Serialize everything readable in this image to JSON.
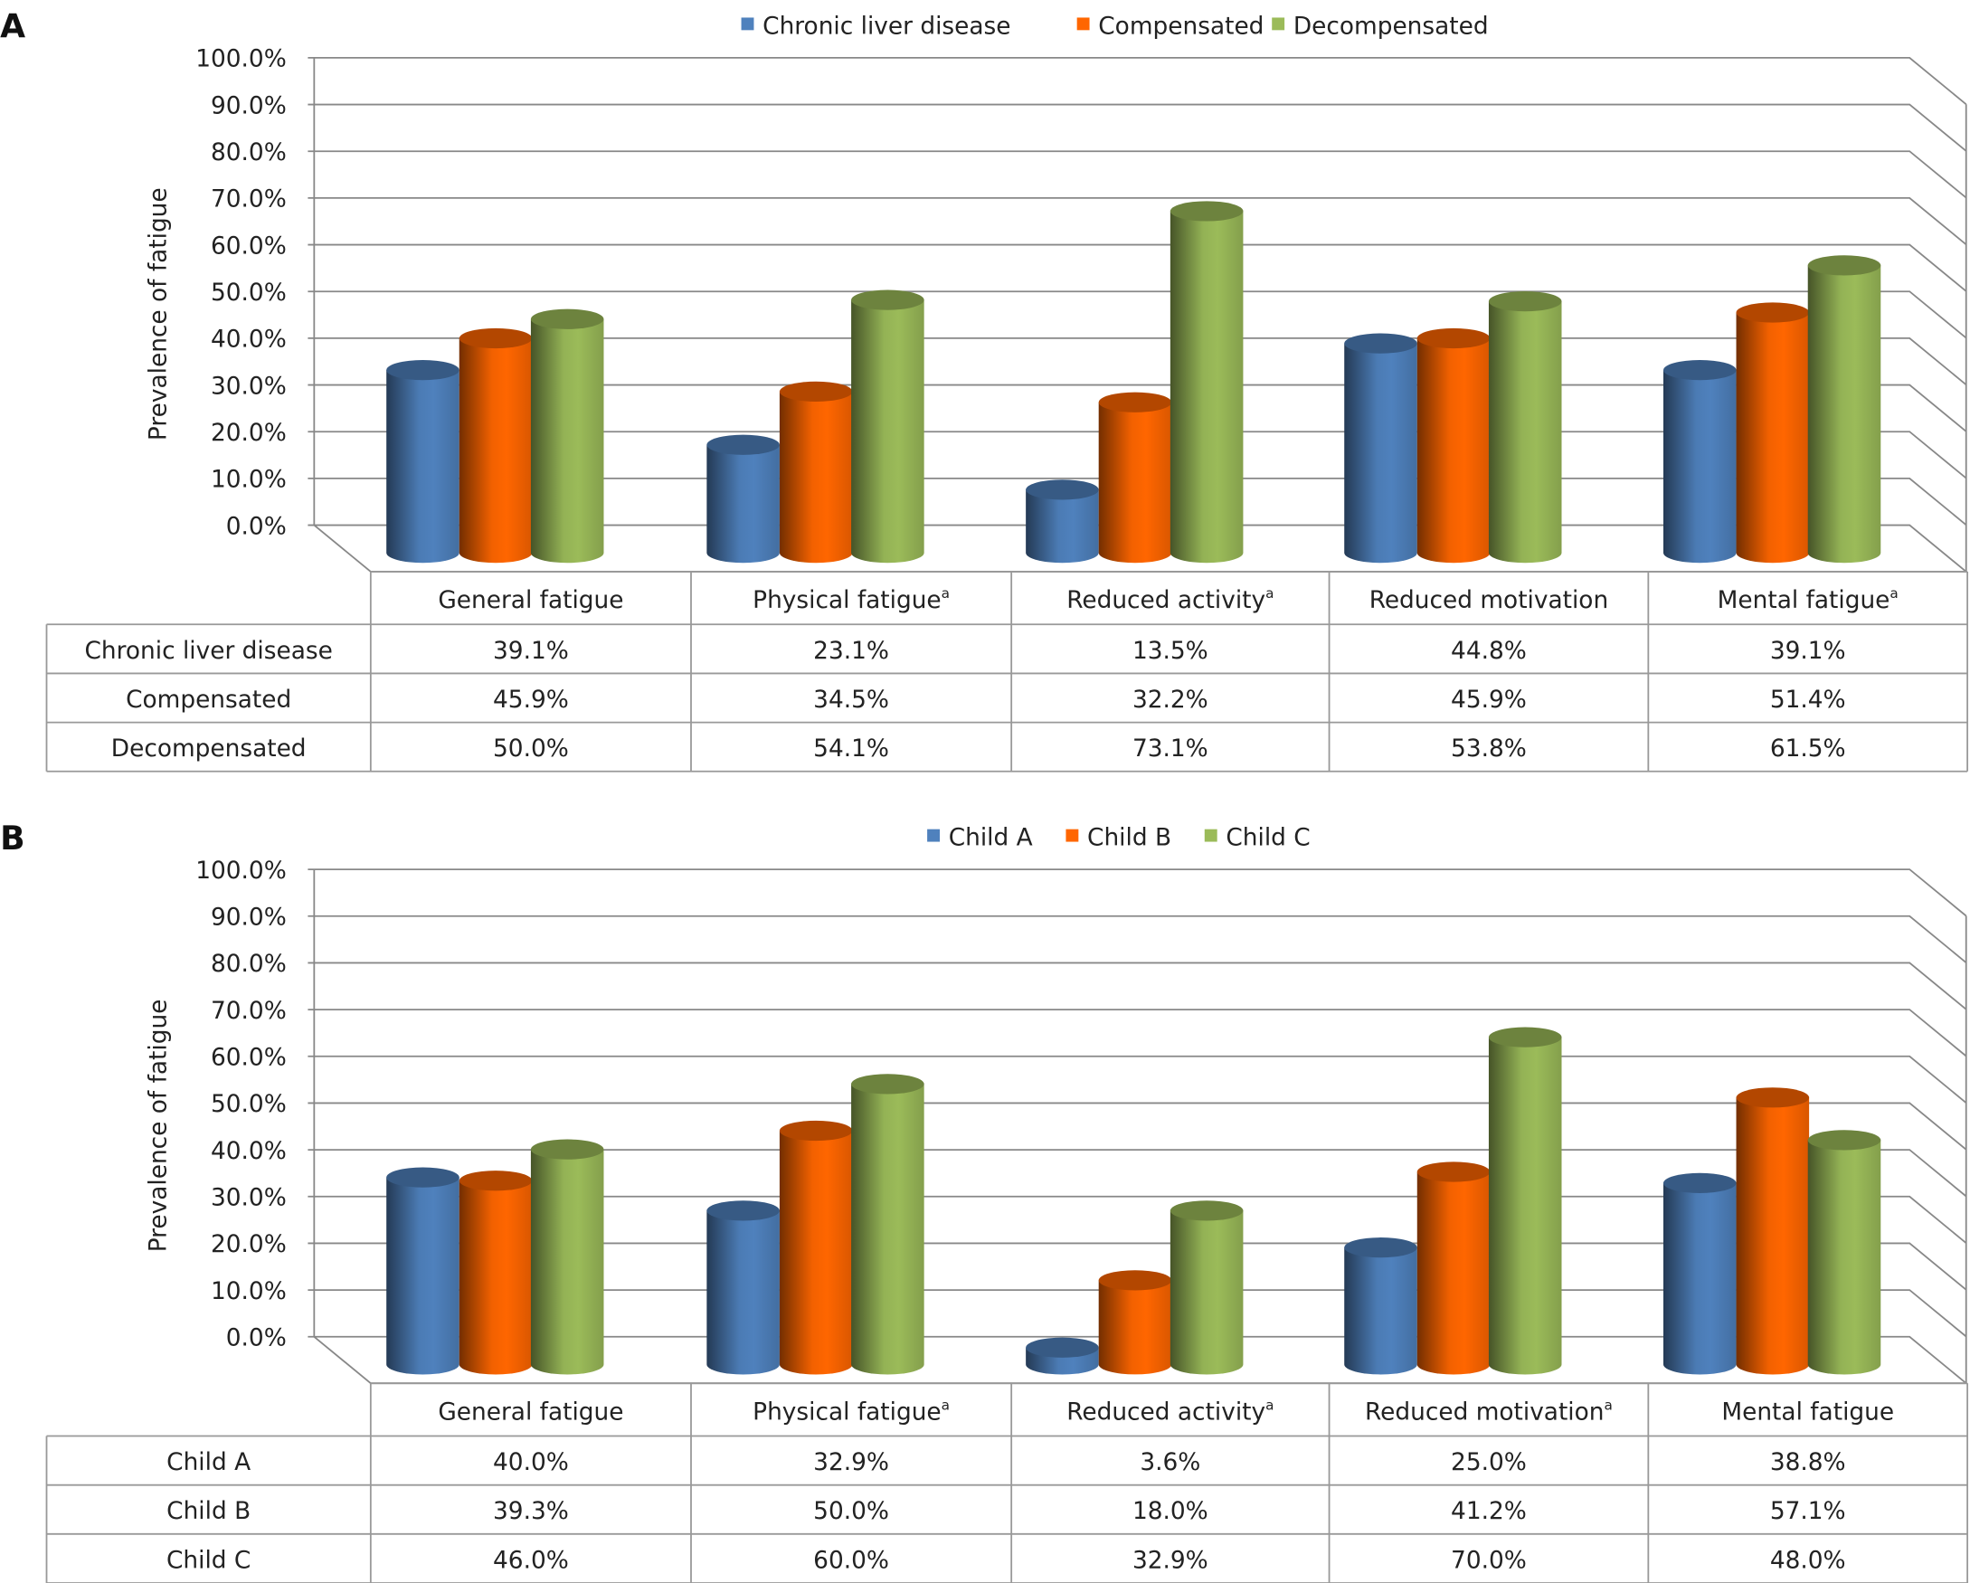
{
  "chart_data": [
    {
      "panel_label": "A",
      "type": "bar",
      "subtype": "3d-cylinder-clustered-with-data-table",
      "ylabel": "Prevalence of fatigue",
      "ylim": [
        0,
        100
      ],
      "yticks": [
        "0.0%",
        "10.0%",
        "20.0%",
        "30.0%",
        "40.0%",
        "50.0%",
        "60.0%",
        "70.0%",
        "80.0%",
        "90.0%",
        "100.0%"
      ],
      "grid": true,
      "legend_position": "top",
      "categories": [
        {
          "label": "General fatigue",
          "sup": ""
        },
        {
          "label": "Physical fatigue",
          "sup": "a"
        },
        {
          "label": "Reduced activity",
          "sup": "a"
        },
        {
          "label": "Reduced motivation",
          "sup": ""
        },
        {
          "label": "Mental fatigue",
          "sup": "a"
        }
      ],
      "series": [
        {
          "name": "Chronic liver disease",
          "color": "#4f81bd",
          "values": [
            39.1,
            23.1,
            13.5,
            44.8,
            39.1
          ],
          "labels": [
            "39.1%",
            "23.1%",
            "13.5%",
            "44.8%",
            "39.1%"
          ]
        },
        {
          "name": "Compensated",
          "color": "#ff6600",
          "values": [
            45.9,
            34.5,
            32.2,
            45.9,
            51.4
          ],
          "labels": [
            "45.9%",
            "34.5%",
            "32.2%",
            "45.9%",
            "51.4%"
          ]
        },
        {
          "name": "Decompensated",
          "color": "#9bbb59",
          "values": [
            50.0,
            54.1,
            73.1,
            53.8,
            61.5
          ],
          "labels": [
            "50.0%",
            "54.1%",
            "73.1%",
            "53.8%",
            "61.5%"
          ]
        }
      ]
    },
    {
      "panel_label": "B",
      "type": "bar",
      "subtype": "3d-cylinder-clustered-with-data-table",
      "ylabel": "Prevalence of fatigue",
      "ylim": [
        0,
        100
      ],
      "yticks": [
        "0.0%",
        "10.0%",
        "20.0%",
        "30.0%",
        "40.0%",
        "50.0%",
        "60.0%",
        "70.0%",
        "80.0%",
        "90.0%",
        "100.0%"
      ],
      "grid": true,
      "legend_position": "top",
      "categories": [
        {
          "label": "General fatigue",
          "sup": ""
        },
        {
          "label": "Physical fatigue",
          "sup": "a"
        },
        {
          "label": "Reduced activity",
          "sup": "a"
        },
        {
          "label": "Reduced motivation",
          "sup": "a"
        },
        {
          "label": "Mental fatigue",
          "sup": ""
        }
      ],
      "series": [
        {
          "name": "Child A",
          "color": "#4f81bd",
          "values": [
            40.0,
            32.9,
            3.6,
            25.0,
            38.8
          ],
          "labels": [
            "40.0%",
            "32.9%",
            "3.6%",
            "25.0%",
            "38.8%"
          ]
        },
        {
          "name": "Child B",
          "color": "#ff6600",
          "values": [
            39.3,
            50.0,
            18.0,
            41.2,
            57.1
          ],
          "labels": [
            "39.3%",
            "50.0%",
            "18.0%",
            "41.2%",
            "57.1%"
          ]
        },
        {
          "name": "Child C",
          "color": "#9bbb59",
          "values": [
            46.0,
            60.0,
            32.9,
            70.0,
            48.0
          ],
          "labels": [
            "46.0%",
            "60.0%",
            "32.9%",
            "70.0%",
            "48.0%"
          ]
        }
      ]
    }
  ]
}
